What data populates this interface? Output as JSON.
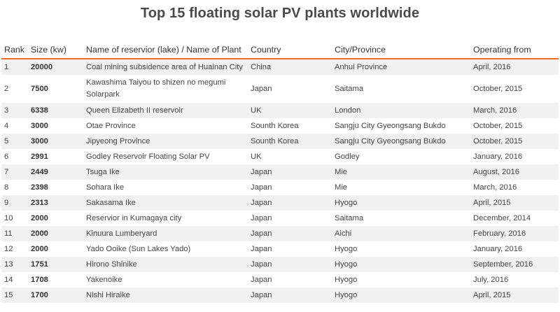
{
  "title": "Top 15 floating solar PV plants worldwide",
  "table": {
    "headers": {
      "rank": "Rank",
      "size": "Size (kw)",
      "name": "Name of reservior (lake) / Name of Plant",
      "country": "Country",
      "city": "City/Province",
      "operating": "Operating from"
    },
    "rows": [
      {
        "rank": "1",
        "size": "20000",
        "name": "Coal mining subsidence area of Huainan City",
        "country": "China",
        "city": "Anhui Province",
        "operating": "April, 2016"
      },
      {
        "rank": "2",
        "size": "7500",
        "name": "Kawashima Taiyou to shizen no megumi Solarpark",
        "country": "Japan",
        "city": "Saitama",
        "operating": "October, 2015"
      },
      {
        "rank": "3",
        "size": "6338",
        "name": "Queen Elizabeth II reservoir",
        "country": "UK",
        "city": "London",
        "operating": "March, 2016"
      },
      {
        "rank": "4",
        "size": "3000",
        "name": "Otae Province",
        "country": "Sounth Korea",
        "city": "Sangju City Gyeongsang Bukdo",
        "operating": "October, 2015"
      },
      {
        "rank": "5",
        "size": "3000",
        "name": "Jipyeong Province",
        "country": "Sounth Korea",
        "city": "Sangju City Gyeongsang Bukdo",
        "operating": "October, 2015"
      },
      {
        "rank": "6",
        "size": "2991",
        "name": "Godley Reservoir Floating Solar PV",
        "country": "UK",
        "city": "Godley",
        "operating": "January, 2016"
      },
      {
        "rank": "7",
        "size": "2449",
        "name": "Tsuga Ike",
        "country": "Japan",
        "city": "Mie",
        "operating": "August, 2016"
      },
      {
        "rank": "8",
        "size": "2398",
        "name": "Sohara Ike",
        "country": "Japan",
        "city": "Mie",
        "operating": "March, 2016"
      },
      {
        "rank": "9",
        "size": "2313",
        "name": "Sakasama Ike",
        "country": "Japan",
        "city": "Hyogo",
        "operating": "April, 2015"
      },
      {
        "rank": "10",
        "size": "2000",
        "name": "Reservior in Kumagaya city",
        "country": "Japan",
        "city": "Saitama",
        "operating": "December, 2014"
      },
      {
        "rank": "11",
        "size": "2000",
        "name": "Kinuura Lumberyard",
        "country": "Japan",
        "city": "Aichi",
        "operating": "February, 2016"
      },
      {
        "rank": "12",
        "size": "2000",
        "name": "Yado Ooike (Sun Lakes Yado)",
        "country": "Japan",
        "city": "Hyogo",
        "operating": "January, 2016"
      },
      {
        "rank": "13",
        "size": "1751",
        "name": "Hirono Shinike",
        "country": "Japan",
        "city": "Hyogo",
        "operating": "September, 2016"
      },
      {
        "rank": "14",
        "size": "1708",
        "name": "Yakenoike",
        "country": "Japan",
        "city": "Hyogo",
        "operating": "July, 2016"
      },
      {
        "rank": "15",
        "size": "1700",
        "name": "Nishi Hiraike",
        "country": "Japan",
        "city": "Hyogo",
        "operating": "April, 2015"
      }
    ]
  },
  "colors": {
    "accent_rule": "#e8692c",
    "stripe": "#f1f1f1"
  }
}
